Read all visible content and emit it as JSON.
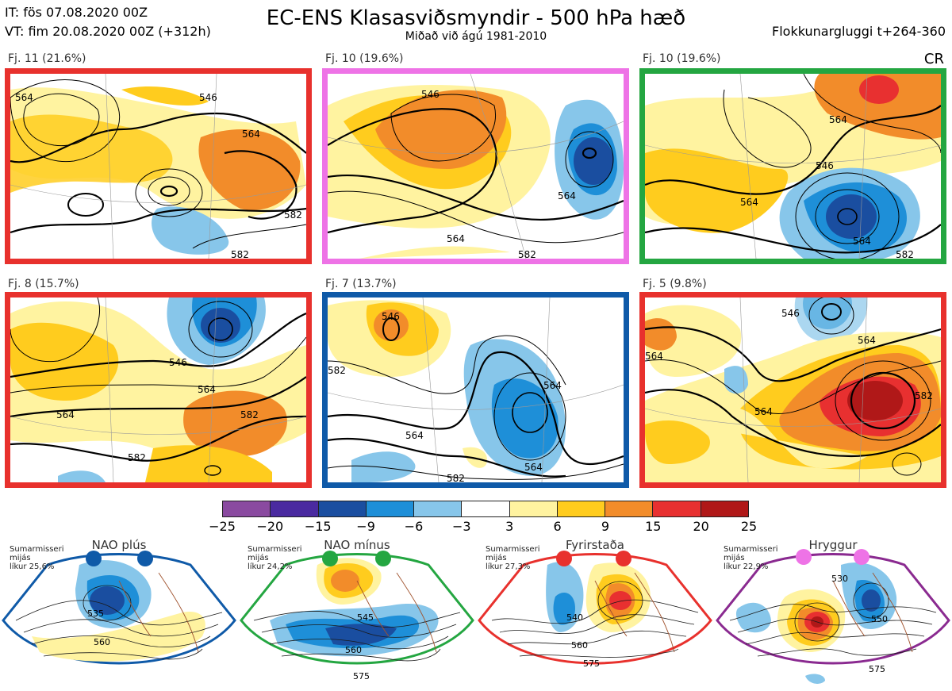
{
  "header": {
    "issue_time": "IT: fös 07.08.2020 00Z",
    "valid_time": "VT: fim 20.08.2020 00Z  (+312h)",
    "title": "EC-ENS Klasasviðsmyndir - 500 hPa hæð",
    "subtitle": "Miðað við ágú 1981-2010",
    "window": "Flokkunargluggi t+264-360",
    "cr": "CR"
  },
  "panels": [
    {
      "label": "Fj. 11 (21.6%)",
      "border": "#e8312d",
      "contours": [
        "564",
        "546",
        "564",
        "582",
        "582"
      ]
    },
    {
      "label": "Fj. 10 (19.6%)",
      "border": "#ee73e6",
      "contours": [
        "546",
        "564",
        "564",
        "582"
      ]
    },
    {
      "label": "Fj. 10 (19.6%)",
      "border": "#24a641",
      "contours": [
        "564",
        "546",
        "564",
        "564",
        "582"
      ]
    },
    {
      "label": "Fj. 8 (15.7%)",
      "border": "#e8312d",
      "contours": [
        "546",
        "564",
        "564",
        "582",
        "582"
      ]
    },
    {
      "label": "Fj. 7 (13.7%)",
      "border": "#0f5aa8",
      "contours": [
        "546",
        "582",
        "564",
        "564",
        "564",
        "582"
      ]
    },
    {
      "label": "Fj. 5 (9.8%)",
      "border": "#e8312d",
      "contours": [
        "546",
        "564",
        "564",
        "564",
        "582"
      ]
    }
  ],
  "colorbar": {
    "colors": [
      "#8a4aa0",
      "#4a2aa0",
      "#1a4ea0",
      "#1e8fd8",
      "#87c6ea",
      "#ffffff",
      "#fff3a0",
      "#ffcc1e",
      "#f28c2a",
      "#e83030",
      "#b01818"
    ],
    "ticks": [
      "−25",
      "−20",
      "−15",
      "−9",
      "−6",
      "−3",
      "3",
      "6",
      "9",
      "15",
      "20",
      "25"
    ]
  },
  "regimes": [
    {
      "title": "NAO plús",
      "note": [
        "Sumarmisseri",
        "mijás",
        "líkur 25,6%"
      ],
      "color": "#0f5aa8",
      "dot": "#0f5aa8",
      "contours": [
        "535",
        "560"
      ]
    },
    {
      "title": "NAO mínus",
      "note": [
        "Sumarmisseri",
        "mijás",
        "líkur 24,2%"
      ],
      "color": "#24a641",
      "dot": "#24a641",
      "contours": [
        "545",
        "560",
        "575"
      ]
    },
    {
      "title": "Fyrirstaða",
      "note": [
        "Sumarmisseri",
        "mijás",
        "líkur 27,3%"
      ],
      "color": "#e8312d",
      "dot": "#e8312d",
      "contours": [
        "540",
        "560",
        "575"
      ]
    },
    {
      "title": "Hryggur",
      "note": [
        "Sumarmisseri",
        "mijás",
        "líkur 22,9%"
      ],
      "color": "#8a2a90",
      "dot": "#ee73e6",
      "contours": [
        "530",
        "550",
        "575"
      ]
    }
  ]
}
